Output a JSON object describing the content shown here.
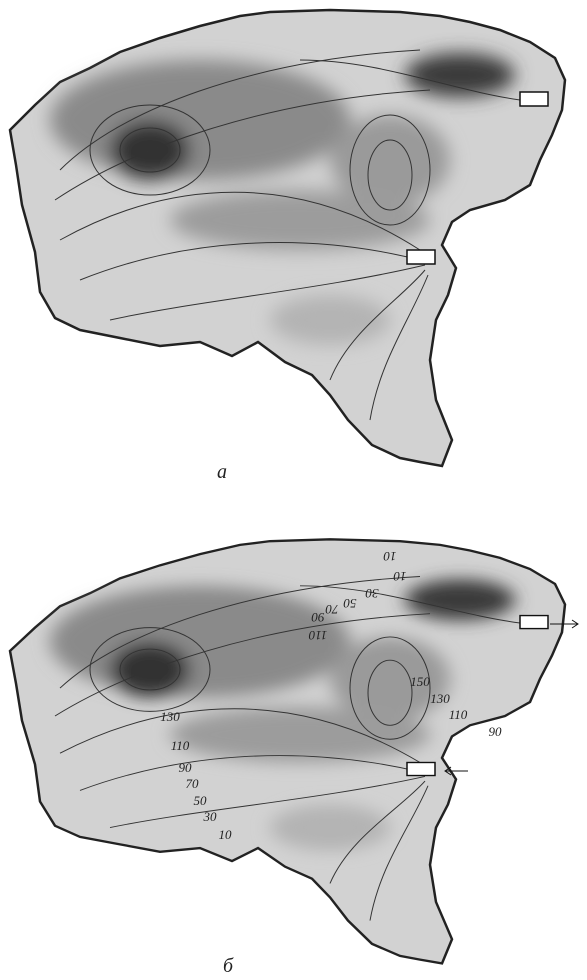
{
  "panels": [
    {
      "label": "а"
    },
    {
      "label": "б",
      "contour_labels": [
        {
          "text": "10",
          "rotated": true
        },
        {
          "text": "10",
          "rotated": true
        },
        {
          "text": "30",
          "rotated": true
        },
        {
          "text": "50",
          "rotated": true
        },
        {
          "text": "70",
          "rotated": true
        },
        {
          "text": "90",
          "rotated": true
        },
        {
          "text": "110",
          "rotated": true
        },
        {
          "text": "150",
          "rotated": false
        },
        {
          "text": "130",
          "rotated": false
        },
        {
          "text": "110",
          "rotated": false
        },
        {
          "text": "90",
          "rotated": false
        },
        {
          "text": "130",
          "rotated": false
        },
        {
          "text": "110",
          "rotated": false
        },
        {
          "text": "90",
          "rotated": false
        },
        {
          "text": "70",
          "rotated": false
        },
        {
          "text": "50",
          "rotated": false
        },
        {
          "text": "30",
          "rotated": false
        },
        {
          "text": "10",
          "rotated": false
        }
      ]
    }
  ]
}
